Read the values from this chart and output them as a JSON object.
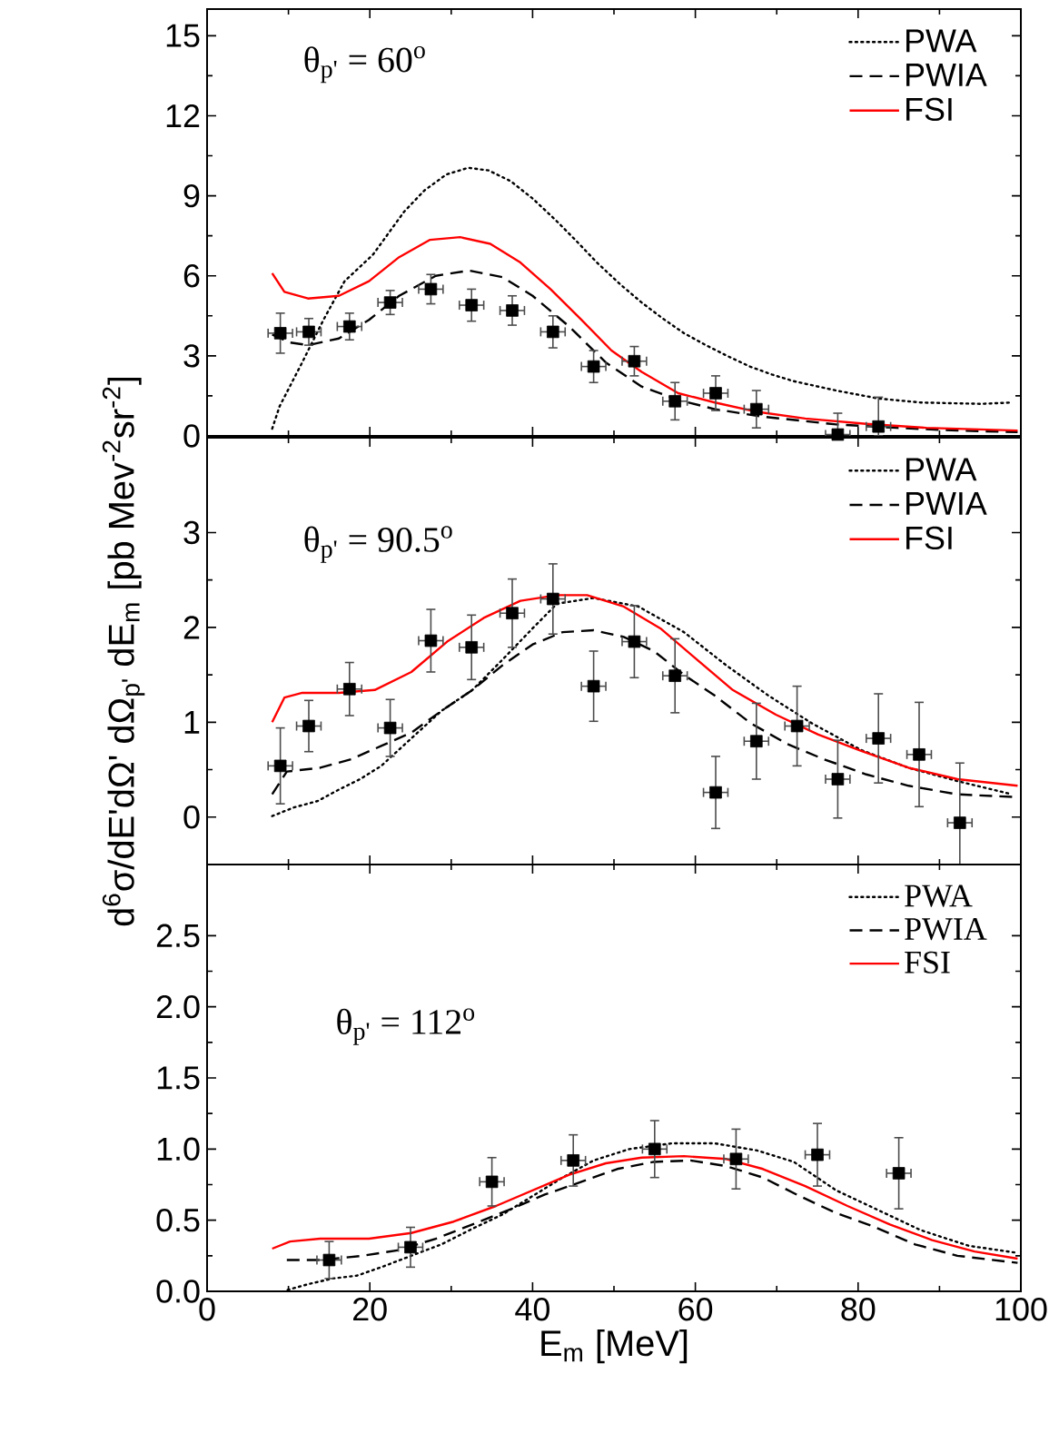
{
  "chart_data": [
    {
      "type": "line",
      "annotations": [
        "θ$_{p'}$ = 60$^{o}$"
      ],
      "xlim": [
        0,
        100
      ],
      "xticks": [
        0,
        20,
        40,
        60,
        80,
        100
      ],
      "ylim": [
        0,
        16
      ],
      "yticks": [
        0,
        3,
        6,
        9,
        12,
        15
      ],
      "tick_labels": "y",
      "legend": "top right",
      "series": [
        {
          "name": "PWA",
          "color": "#000000",
          "line_style": "dotted",
          "x": [
            8.0,
            8.9,
            11.7,
            14.3,
            16.9,
            20.4,
            22.3,
            24.2,
            26.7,
            29.4,
            32.1,
            34.6,
            37.3,
            40.0,
            42.8,
            45.4,
            47.9,
            50.7,
            53.4,
            56.0,
            58.6,
            61.3,
            63.9,
            66.7,
            69.4,
            72.1,
            77.3,
            82.5,
            87.7,
            95.1,
            98.9
          ],
          "values": [
            0.27,
            1.1,
            2.76,
            4.35,
            5.8,
            6.8,
            7.6,
            8.4,
            9.2,
            9.8,
            10.05,
            9.95,
            9.55,
            8.9,
            8.1,
            7.3,
            6.5,
            5.7,
            5.0,
            4.4,
            3.85,
            3.4,
            3.0,
            2.6,
            2.3,
            2.05,
            1.7,
            1.4,
            1.25,
            1.2,
            1.25
          ]
        },
        {
          "name": "PWIA",
          "color": "#000000",
          "line_style": "dashed",
          "x": [
            8.0,
            10.2,
            12.4,
            16.2,
            19.9,
            23.6,
            28.1,
            32.2,
            36.3,
            40.0,
            44.5,
            49.0,
            53.4,
            57.9,
            62.4,
            68.3,
            77.3,
            84.7,
            92.2,
            99.6
          ],
          "values": [
            3.8,
            3.5,
            3.4,
            3.65,
            4.35,
            5.25,
            6.0,
            6.2,
            5.95,
            5.25,
            4.1,
            2.75,
            1.85,
            1.35,
            1.0,
            0.72,
            0.43,
            0.3,
            0.2,
            0.14
          ]
        },
        {
          "name": "FSI",
          "color": "#ff0000",
          "line_style": "solid",
          "x": [
            8.0,
            9.5,
            12.4,
            16.2,
            19.9,
            23.6,
            27.4,
            31.1,
            34.8,
            38.5,
            42.2,
            46.0,
            49.7,
            53.4,
            57.9,
            62.4,
            67.6,
            73.5,
            81.0,
            88.4,
            99.6
          ],
          "values": [
            6.1,
            5.4,
            5.15,
            5.25,
            5.8,
            6.7,
            7.35,
            7.45,
            7.2,
            6.5,
            5.5,
            4.35,
            3.2,
            2.4,
            1.6,
            1.25,
            0.9,
            0.65,
            0.45,
            0.3,
            0.2
          ]
        },
        {
          "type": "scatter",
          "color": "#000000",
          "marker": "square",
          "x": [
            9,
            12.5,
            17.5,
            22.5,
            27.5,
            32.5,
            37.5,
            42.5,
            47.5,
            52.5,
            57.5,
            62.5,
            67.5,
            77.5,
            82.5
          ],
          "values": [
            3.85,
            3.9,
            4.1,
            5.0,
            5.5,
            4.9,
            4.7,
            3.9,
            2.6,
            2.8,
            1.3,
            1.6,
            1.0,
            0.05,
            0.35
          ],
          "errors": [
            0.75,
            0.5,
            0.5,
            0.45,
            0.55,
            0.6,
            0.55,
            0.6,
            0.6,
            0.55,
            0.7,
            0.65,
            0.7,
            [
              0,
              0.85
            ],
            [
              0,
              1.45
            ]
          ],
          "xerrors": [
            1.5,
            1.5,
            1.5,
            1.5,
            1.5,
            1.5,
            1.5,
            1.5,
            1.5,
            1.5,
            1.5,
            1.5,
            1.5,
            1.5,
            1.5
          ]
        }
      ]
    },
    {
      "type": "line",
      "ylabel": "d$^{6}$σ/dE'dΩ' dΩ$_{p'}$ dE$_{m}$ [pb Mev$^{-2}$sr$^{-2}$]",
      "annotations": [
        "θ$_{p'}$ = 90.5$^{o}$"
      ],
      "xlim": [
        0,
        100
      ],
      "xticks": [
        0,
        20,
        40,
        60,
        80,
        100
      ],
      "ylim": [
        -0.5,
        4
      ],
      "yticks": [
        0,
        1,
        2,
        3
      ],
      "tick_labels": "y",
      "legend": "top right",
      "series": [
        {
          "name": "PWA",
          "color": "#000000",
          "line_style": "dotted",
          "x": [
            8.0,
            10.6,
            13.6,
            16.2,
            18.8,
            21.4,
            25.1,
            28.8,
            32.6,
            36.3,
            40.0,
            43.0,
            47.5,
            53.0,
            58.6,
            63.8,
            69.0,
            74.3,
            80.3,
            86.2,
            92.2,
            98.9
          ],
          "values": [
            0.01,
            0.1,
            0.17,
            0.29,
            0.4,
            0.54,
            0.83,
            1.12,
            1.34,
            1.66,
            1.99,
            2.25,
            2.31,
            2.22,
            1.95,
            1.6,
            1.28,
            0.99,
            0.71,
            0.52,
            0.38,
            0.24
          ]
        },
        {
          "name": "PWIA",
          "color": "#000000",
          "line_style": "dashed",
          "x": [
            8.0,
            9.8,
            13.9,
            17.7,
            21.4,
            25.1,
            28.8,
            32.6,
            36.3,
            40.0,
            43.7,
            47.5,
            51.2,
            54.9,
            58.6,
            62.4,
            66.8,
            71.3,
            75.8,
            81.0,
            86.2,
            92.2,
            99.6
          ],
          "values": [
            0.24,
            0.48,
            0.52,
            0.61,
            0.75,
            0.89,
            1.12,
            1.34,
            1.6,
            1.82,
            1.95,
            1.97,
            1.9,
            1.75,
            1.5,
            1.28,
            0.99,
            0.77,
            0.61,
            0.45,
            0.33,
            0.24,
            0.21
          ]
        },
        {
          "name": "FSI",
          "color": "#ff0000",
          "line_style": "solid",
          "x": [
            8.0,
            9.5,
            11.7,
            16.2,
            20.6,
            25.1,
            29.5,
            34.0,
            38.5,
            43.0,
            46.7,
            51.2,
            55.7,
            60.2,
            64.6,
            69.9,
            75.1,
            80.3,
            86.2,
            92.2,
            99.6
          ],
          "values": [
            1.0,
            1.26,
            1.31,
            1.31,
            1.34,
            1.53,
            1.85,
            2.1,
            2.28,
            2.34,
            2.34,
            2.22,
            1.99,
            1.66,
            1.34,
            1.08,
            0.87,
            0.7,
            0.52,
            0.4,
            0.33
          ]
        },
        {
          "type": "scatter",
          "color": "#000000",
          "marker": "square",
          "x": [
            9,
            12.5,
            17.5,
            22.5,
            27.5,
            32.5,
            37.5,
            42.5,
            47.5,
            52.5,
            57.5,
            62.5,
            67.5,
            72.5,
            77.5,
            82.5,
            87.5,
            92.5
          ],
          "values": [
            0.54,
            0.96,
            1.35,
            0.94,
            1.86,
            1.79,
            2.15,
            2.3,
            1.38,
            1.85,
            1.49,
            0.26,
            0.8,
            0.96,
            0.4,
            0.83,
            0.66,
            -0.06
          ],
          "errors": [
            0.4,
            0.27,
            0.28,
            0.3,
            0.33,
            0.34,
            0.36,
            0.37,
            0.37,
            0.38,
            0.39,
            0.38,
            0.4,
            0.42,
            0.41,
            0.47,
            0.55,
            [
              -0.5,
              0.57
            ]
          ],
          "xerrors": [
            1.5,
            1.5,
            1.5,
            1.5,
            1.5,
            1.5,
            1.5,
            1.5,
            1.5,
            1.5,
            1.5,
            1.5,
            1.5,
            1.5,
            1.5,
            1.5,
            1.5,
            1.5
          ]
        }
      ]
    },
    {
      "type": "line",
      "xlabel": "E$_{m}$ [MeV]",
      "annotations": [
        "θ$_{p'}$ = 112$^{o}$"
      ],
      "xlim": [
        0,
        100
      ],
      "xticks": [
        0,
        20,
        40,
        60,
        80,
        100
      ],
      "ylim": [
        0,
        3
      ],
      "yticks": [
        {
          "value": 0,
          "label": "0.0"
        },
        {
          "value": 0.5,
          "label": "0.5"
        },
        {
          "value": 1,
          "label": "1.0"
        },
        {
          "value": 1.5,
          "label": "1.5"
        },
        {
          "value": 2,
          "label": "2.0"
        },
        {
          "value": 2.5,
          "label": "2.5"
        }
      ],
      "legend": "top right",
      "series": [
        {
          "name": "PWA",
          "color": "#000000",
          "line_style": "dotted",
          "x": [
            9.9,
            12.4,
            15.4,
            18.4,
            21.4,
            25.1,
            28.8,
            32.6,
            36.3,
            40.0,
            43.7,
            47.5,
            51.9,
            57.1,
            62.4,
            67.6,
            72.1,
            77.3,
            82.5,
            87.7,
            93.6,
            99.6
          ],
          "values": [
            0.01,
            0.05,
            0.09,
            0.11,
            0.17,
            0.25,
            0.33,
            0.44,
            0.54,
            0.67,
            0.8,
            0.92,
            1.0,
            1.04,
            1.04,
            0.99,
            0.91,
            0.71,
            0.57,
            0.43,
            0.32,
            0.27
          ]
        },
        {
          "name": "PWIA",
          "color": "#000000",
          "line_style": "dashed",
          "x": [
            9.8,
            13.9,
            19.1,
            23.6,
            28.1,
            32.6,
            37.0,
            41.5,
            46.0,
            50.4,
            54.9,
            59.4,
            63.8,
            68.3,
            72.8,
            77.3,
            81.7,
            87.0,
            92.2,
            99.6
          ],
          "values": [
            0.22,
            0.22,
            0.25,
            0.29,
            0.37,
            0.47,
            0.57,
            0.68,
            0.77,
            0.86,
            0.91,
            0.92,
            0.88,
            0.8,
            0.67,
            0.55,
            0.46,
            0.33,
            0.25,
            0.2
          ]
        },
        {
          "name": "FSI",
          "color": "#ff0000",
          "line_style": "solid",
          "x": [
            8.0,
            10.2,
            13.9,
            19.9,
            25.1,
            30.3,
            35.5,
            40.0,
            44.5,
            49.0,
            53.4,
            58.6,
            63.8,
            68.3,
            73.5,
            78.7,
            83.9,
            89.1,
            94.3,
            99.6
          ],
          "values": [
            0.3,
            0.35,
            0.37,
            0.37,
            0.41,
            0.49,
            0.6,
            0.71,
            0.82,
            0.9,
            0.94,
            0.95,
            0.93,
            0.86,
            0.74,
            0.6,
            0.47,
            0.36,
            0.28,
            0.23
          ]
        },
        {
          "type": "scatter",
          "color": "#000000",
          "marker": "square",
          "x": [
            15,
            25,
            35,
            45,
            55,
            65,
            75,
            85
          ],
          "values": [
            0.22,
            0.31,
            0.77,
            0.92,
            1.0,
            0.93,
            0.96,
            0.83
          ],
          "errors": [
            0.13,
            0.14,
            0.17,
            0.18,
            0.2,
            0.21,
            0.22,
            0.25
          ],
          "xerrors": [
            1.5,
            1.5,
            1.5,
            1.5,
            1.5,
            1.5,
            1.5,
            1.5
          ]
        }
      ]
    }
  ]
}
